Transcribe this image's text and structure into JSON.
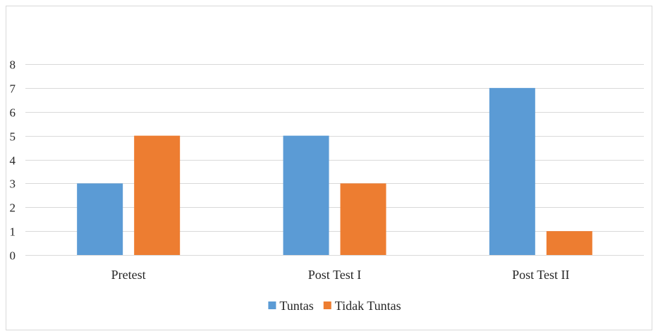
{
  "chart_data": {
    "type": "bar",
    "title": "",
    "xlabel": "",
    "ylabel": "",
    "categories": [
      "Pretest",
      "Post Test I",
      "Post Test II"
    ],
    "series": [
      {
        "name": "Tuntas",
        "values": [
          3,
          5,
          7
        ],
        "color": "#5b9bd5"
      },
      {
        "name": "Tidak Tuntas",
        "values": [
          5,
          3,
          1
        ],
        "color": "#ed7d31"
      }
    ],
    "ylim": [
      0,
      8
    ],
    "yticks": [
      0,
      1,
      2,
      3,
      4,
      5,
      6,
      7,
      8
    ],
    "grid": true,
    "legend_position": "bottom"
  }
}
